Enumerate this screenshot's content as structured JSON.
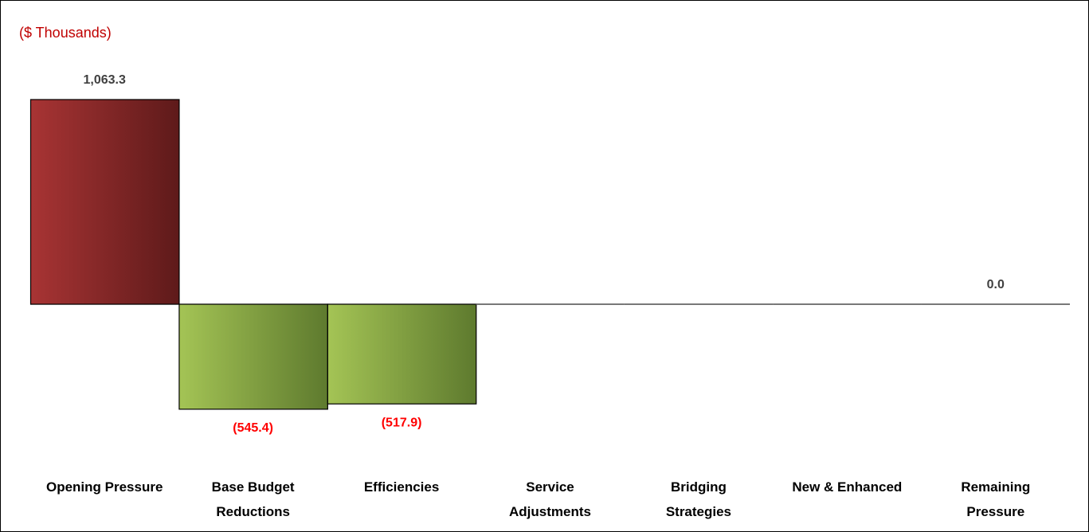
{
  "chart_data": {
    "type": "bar",
    "subtitle": "($ Thousands)",
    "categories": [
      "Opening Pressure",
      "Base Budget Reductions",
      "Efficiencies",
      "Service Adjustments",
      "Bridging Strategies",
      "New & Enhanced",
      "Remaining Pressure"
    ],
    "values": [
      1063.3,
      -545.4,
      -517.9,
      0,
      0,
      0,
      0
    ],
    "value_labels": [
      "1,063.3",
      "(545.4)",
      "(517.9)",
      null,
      null,
      null,
      "0.0"
    ],
    "positive_color": "#9b2a2a",
    "negative_color": "#8fb246",
    "label_color": "#404040",
    "negative_label_color": "#ff0000",
    "subtitle_color": "#c00000"
  }
}
